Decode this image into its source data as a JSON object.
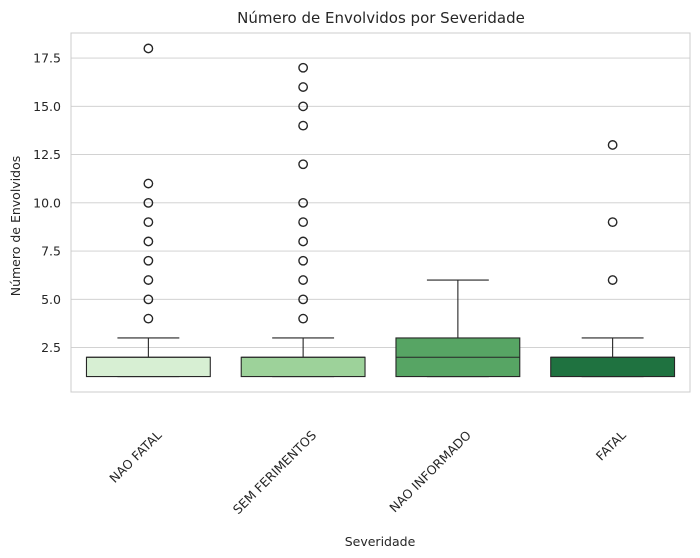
{
  "chart_data": {
    "type": "box",
    "title": "Número de Envolvidos por Severidade",
    "xlabel": "Severidade",
    "ylabel": "Número de Envolvidos",
    "ylim": [
      0.2,
      18.8
    ],
    "yticks": [
      2.5,
      5.0,
      7.5,
      10.0,
      12.5,
      15.0,
      17.5
    ],
    "ytick_labels": [
      "2.5",
      "5.0",
      "7.5",
      "10.0",
      "12.5",
      "15.0",
      "17.5"
    ],
    "grid": true,
    "categories": [
      "NAO FATAL",
      "SEM FERIMENTOS",
      "NAO INFORMADO",
      "FATAL"
    ],
    "boxes": [
      {
        "category": "NAO FATAL",
        "min": 1,
        "q1": 1,
        "median": 2,
        "q3": 2,
        "max": 3,
        "outliers": [
          4,
          5,
          6,
          7,
          8,
          9,
          10,
          11,
          18
        ],
        "color": "#d7efd3"
      },
      {
        "category": "SEM FERIMENTOS",
        "min": 1,
        "q1": 1,
        "median": 2,
        "q3": 2,
        "max": 3,
        "outliers": [
          4,
          5,
          6,
          7,
          8,
          9,
          10,
          12,
          14,
          15,
          16,
          17
        ],
        "color": "#9dd29a"
      },
      {
        "category": "NAO INFORMADO",
        "min": 1,
        "q1": 1,
        "median": 2,
        "q3": 3,
        "max": 6,
        "outliers": [],
        "color": "#57a564"
      },
      {
        "category": "FATAL",
        "min": 1,
        "q1": 1,
        "median": 2,
        "q3": 2,
        "max": 3,
        "outliers": [
          6,
          9,
          13
        ],
        "color": "#1f7240"
      }
    ]
  }
}
